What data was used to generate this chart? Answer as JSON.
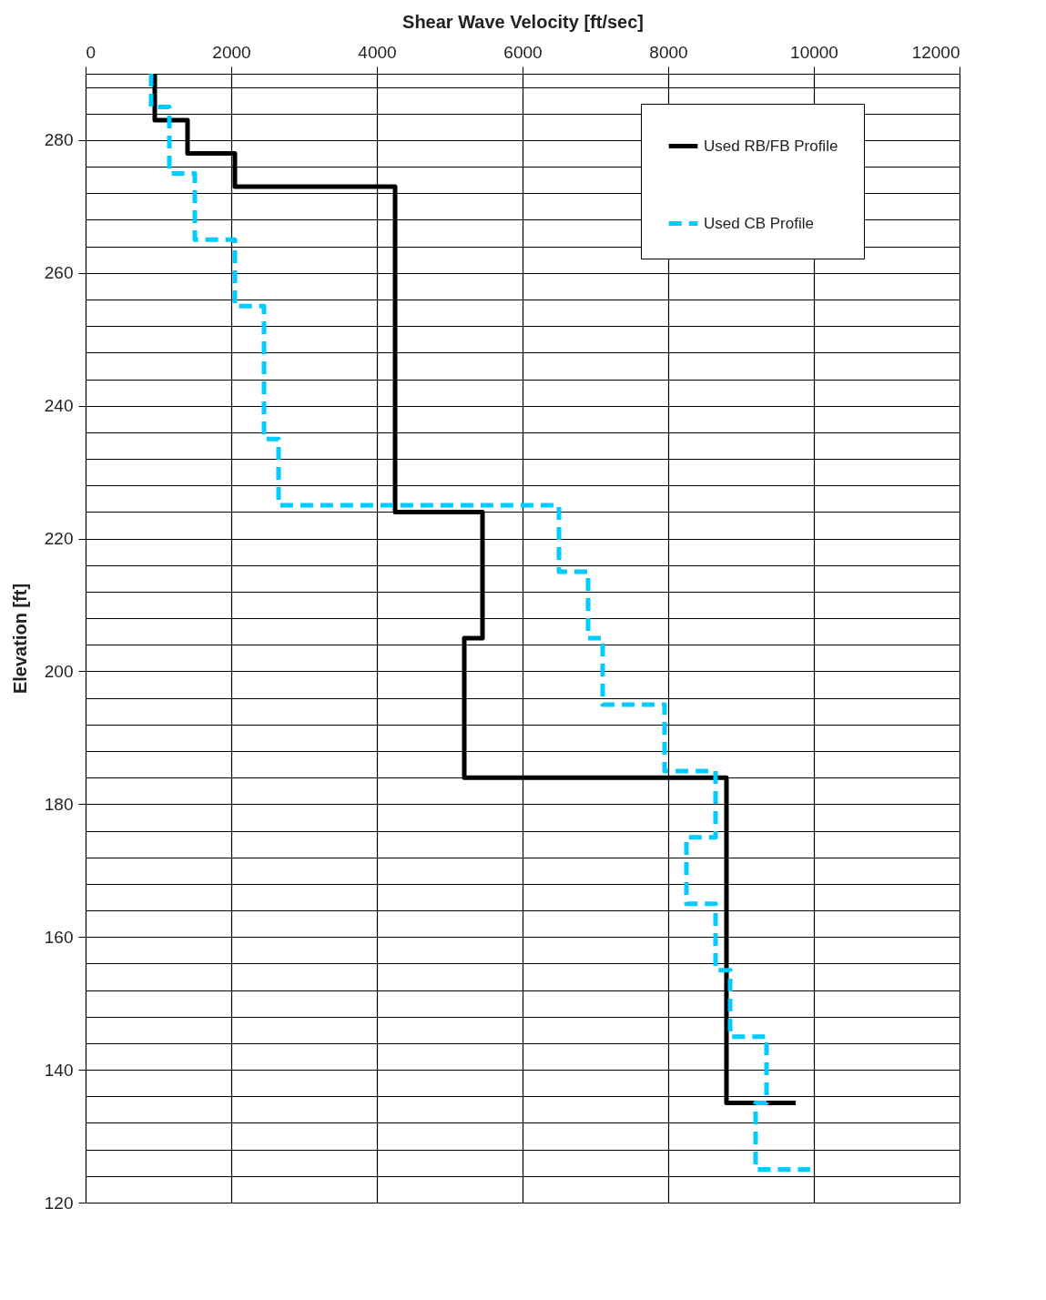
{
  "chart_data": {
    "type": "line",
    "xlabel": "Shear Wave Velocity [ft/sec]",
    "ylabel": "Elevation [ft]",
    "xlim": [
      0,
      12000
    ],
    "xticks": [
      0,
      2000,
      4000,
      6000,
      8000,
      10000,
      12000
    ],
    "ylim": [
      120,
      290
    ],
    "yticks": [
      120,
      {
        "value": 124,
        "label": null
      },
      {
        "value": 128,
        "label": null
      },
      {
        "value": 132,
        "label": null
      },
      {
        "value": 136,
        "label": null
      },
      140,
      {
        "value": 144,
        "label": null
      },
      {
        "value": 148,
        "label": null
      },
      {
        "value": 152,
        "label": null
      },
      {
        "value": 156,
        "label": null
      },
      160,
      {
        "value": 164,
        "label": null
      },
      {
        "value": 168,
        "label": null
      },
      {
        "value": 172,
        "label": null
      },
      {
        "value": 176,
        "label": null
      },
      180,
      {
        "value": 184,
        "label": null
      },
      {
        "value": 188,
        "label": null
      },
      {
        "value": 192,
        "label": null
      },
      {
        "value": 196,
        "label": null
      },
      200,
      {
        "value": 204,
        "label": null
      },
      {
        "value": 208,
        "label": null
      },
      {
        "value": 212,
        "label": null
      },
      {
        "value": 216,
        "label": null
      },
      220,
      {
        "value": 224,
        "label": null
      },
      {
        "value": 228,
        "label": null
      },
      {
        "value": 232,
        "label": null
      },
      {
        "value": 236,
        "label": null
      },
      240,
      {
        "value": 244,
        "label": null
      },
      {
        "value": 248,
        "label": null
      },
      {
        "value": 252,
        "label": null
      },
      {
        "value": 256,
        "label": null
      },
      260,
      {
        "value": 264,
        "label": null
      },
      {
        "value": 268,
        "label": null
      },
      {
        "value": 272,
        "label": null
      },
      {
        "value": 276,
        "label": null
      },
      280,
      {
        "value": 284,
        "label": null
      },
      {
        "value": 288,
        "label": null
      }
    ],
    "grid": true,
    "legend": "top right",
    "marker": "none",
    "series": [
      {
        "name": "Used RB/FB Profile",
        "color": "#000000",
        "line_style": "solid",
        "x": [
          950,
          950,
          1400,
          1400,
          2050,
          2050,
          4250,
          4250,
          5450,
          5450,
          5200,
          5200,
          8800,
          8800,
          9750
        ],
        "values": [
          290,
          283,
          283,
          278,
          278,
          273,
          273,
          224,
          224,
          205,
          205,
          184,
          184,
          135,
          135
        ]
      },
      {
        "name": "Used CB Profile",
        "color": "#00ccff",
        "line_style": "dashed",
        "x": [
          900,
          900,
          1150,
          1150,
          1500,
          1500,
          2050,
          2050,
          2450,
          2450,
          2650,
          2650,
          6500,
          6500,
          6900,
          6900,
          7100,
          7100,
          7950,
          7950,
          8650,
          8650,
          8250,
          8250,
          8650,
          8650,
          8850,
          8850,
          9350,
          9350,
          9200,
          9200,
          9950
        ],
        "values": [
          290,
          285,
          285,
          275,
          275,
          265,
          265,
          255,
          255,
          235,
          235,
          225,
          225,
          215,
          215,
          205,
          205,
          195,
          195,
          185,
          185,
          175,
          175,
          165,
          165,
          155,
          155,
          145,
          145,
          135,
          135,
          125,
          125
        ]
      }
    ]
  }
}
